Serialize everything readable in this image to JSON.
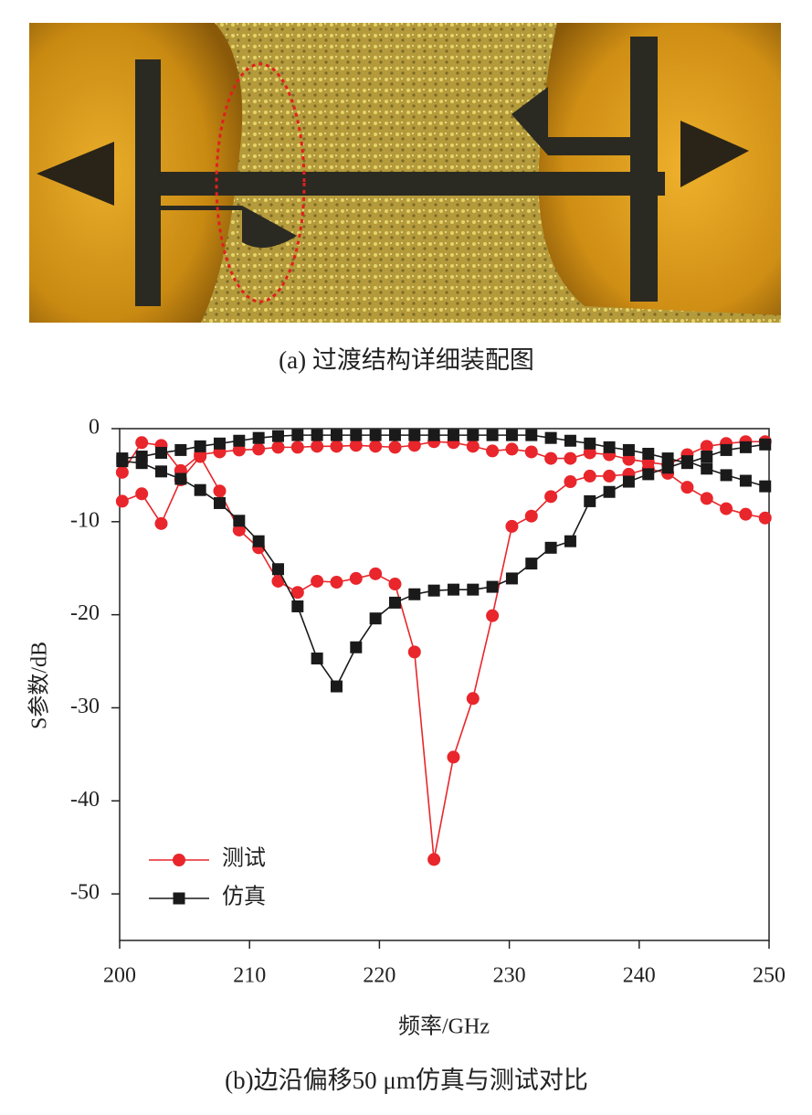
{
  "figure": {
    "caption_a": "(a)  过渡结构详细装配图",
    "caption_b": "(b)边沿偏移50 μm仿真与测试对比"
  },
  "chart_data": {
    "type": "line",
    "x_label": "频率/GHz",
    "y_label": "S参数/dB",
    "xlim": [
      200,
      250
    ],
    "xticks": [
      200,
      210,
      220,
      230,
      240,
      250
    ],
    "ylim": [
      -55,
      0
    ],
    "yticks": [
      0,
      -10,
      -20,
      -30,
      -40,
      -50
    ],
    "legend": "lower-left",
    "x": [
      200.2,
      201.7,
      203.2,
      204.7,
      206.2,
      207.7,
      209.2,
      210.7,
      212.2,
      213.7,
      215.2,
      216.7,
      218.2,
      219.7,
      221.2,
      222.7,
      224.2,
      225.7,
      227.2,
      228.7,
      230.2,
      231.7,
      233.2,
      234.7,
      236.2,
      237.7,
      239.2,
      240.7,
      242.2,
      243.7,
      245.2,
      246.7,
      248.2,
      249.7
    ],
    "series": [
      {
        "name": "测试",
        "color": "#e8262b",
        "marker": "circle",
        "values": [
          -7.8,
          -7.0,
          -10.2,
          -5.5,
          -3.0,
          -6.7,
          -10.9,
          -12.8,
          -16.4,
          -17.6,
          -16.4,
          -16.5,
          -16.1,
          -15.6,
          -16.7,
          -24.0,
          -46.3,
          -35.3,
          -29.0,
          -20.1,
          -10.5,
          -9.4,
          -7.3,
          -5.7,
          -5.1,
          -5.1,
          -4.9,
          -4.3,
          -4.8,
          -6.3,
          -7.5,
          -8.6,
          -9.2,
          -9.6
        ]
      },
      {
        "color": "#e8262b",
        "marker": "circle",
        "values": [
          -4.7,
          -1.5,
          -1.8,
          -4.5,
          -2.8,
          -2.5,
          -2.3,
          -2.2,
          -2.0,
          -2.0,
          -1.9,
          -1.9,
          -1.8,
          -1.9,
          -2.0,
          -1.8,
          -1.4,
          -1.5,
          -1.9,
          -2.4,
          -2.2,
          -2.5,
          -3.2,
          -3.2,
          -2.6,
          -2.8,
          -3.3,
          -3.6,
          -3.9,
          -2.8,
          -1.9,
          -1.6,
          -1.4,
          -1.4
        ]
      },
      {
        "name": "仿真",
        "color": "#1a1a1a",
        "marker": "square",
        "values": [
          -3.5,
          -3.7,
          -4.6,
          -5.4,
          -6.6,
          -8.0,
          -9.9,
          -12.1,
          -15.1,
          -19.1,
          -24.7,
          -27.7,
          -23.5,
          -20.4,
          -18.7,
          -17.8,
          -17.4,
          -17.3,
          -17.3,
          -17.0,
          -16.1,
          -14.5,
          -12.8,
          -12.1,
          -7.8,
          -6.8,
          -5.7,
          -4.9,
          -4.2,
          -3.5,
          -4.3,
          -5.0,
          -5.6,
          -6.2
        ]
      },
      {
        "color": "#1a1a1a",
        "marker": "square",
        "values": [
          -3.2,
          -3.0,
          -2.6,
          -2.3,
          -1.9,
          -1.6,
          -1.3,
          -1.0,
          -0.8,
          -0.7,
          -0.7,
          -0.7,
          -0.7,
          -0.7,
          -0.7,
          -0.7,
          -0.7,
          -0.7,
          -0.7,
          -0.7,
          -0.7,
          -0.7,
          -1.0,
          -1.3,
          -1.6,
          -2.0,
          -2.3,
          -2.7,
          -3.2,
          -3.7,
          -3.0,
          -2.3,
          -2.0,
          -1.7
        ]
      }
    ]
  }
}
